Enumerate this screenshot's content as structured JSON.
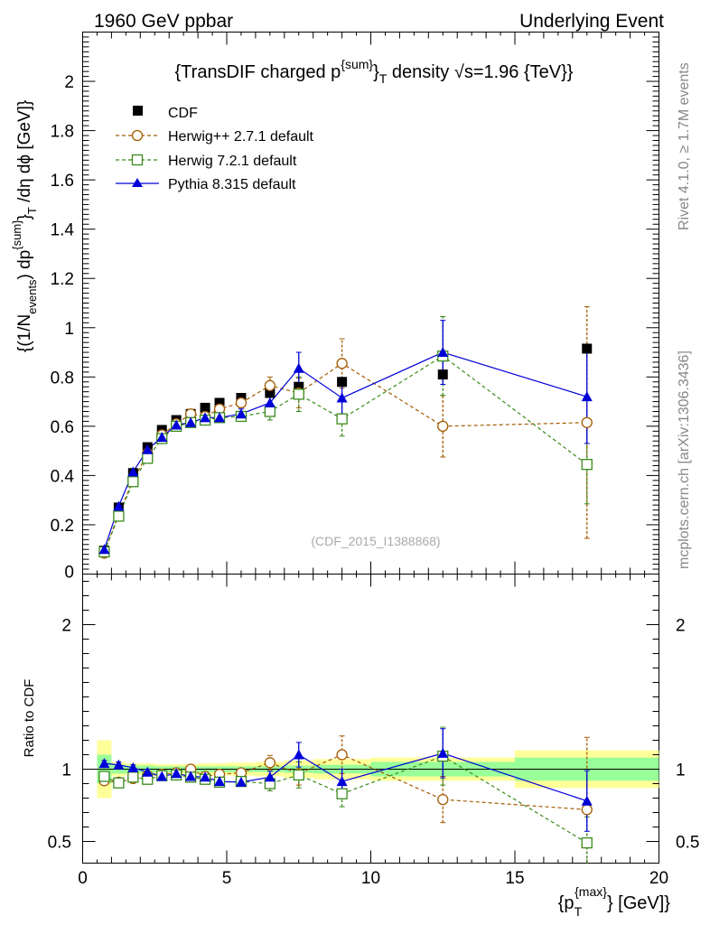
{
  "header": {
    "left": "1960 GeV ppbar",
    "right": "Underlying Event"
  },
  "side": {
    "rivet": "Rivet 4.1.0, ≥ 1.7M events",
    "mcplots": "mcplots.cern.ch [arXiv:1306.3436]"
  },
  "watermark": "(CDF_2015_I1388868)",
  "chart_data": {
    "type": "line",
    "title": {
      "pre": "{TransDIF charged p",
      "sup": "{sum}",
      "mid": "}",
      "sub": "T",
      "post": " density √s=1.96 {TeV}}"
    },
    "xlabel": {
      "pre": "{p",
      "sub": "T",
      "sup": "{max}",
      "post": "} [GeV]}"
    },
    "ylabel_main": {
      "p1": "{(1/N",
      "s1": "events",
      "p2": ") dp",
      "s2": "{sum}",
      "p3": "}",
      "s3": "T",
      "p4": " /dη  dϕ [GeV]}"
    },
    "ylabel_ratio": "Ratio to CDF",
    "xlim": [
      0,
      20
    ],
    "ylim_main": [
      0,
      2.2
    ],
    "ylim_ratio": [
      0.35,
      2.35
    ],
    "x_ticks": [
      "0",
      "5",
      "10",
      "15",
      "20"
    ],
    "y_ticks_main": [
      "0.2",
      "0.4",
      "0.6",
      "0.8",
      "1",
      "1.2",
      "1.4",
      "1.6",
      "1.8",
      "2"
    ],
    "y_ticks_ratio": [
      "0.5",
      "1",
      "2"
    ],
    "y_tick_zero_main": "0",
    "legend": [
      "CDF",
      "Herwig++ 2.7.1 default",
      "Herwig 7.2.1 default",
      "Pythia 8.315 default"
    ],
    "x": [
      0.75,
      1.25,
      1.75,
      2.25,
      2.75,
      3.25,
      3.75,
      4.25,
      4.75,
      5.5,
      6.5,
      7.5,
      9.0,
      12.5,
      17.5
    ],
    "bins": [
      [
        0.5,
        1.0
      ],
      [
        1.0,
        1.5
      ],
      [
        1.5,
        2.0
      ],
      [
        2.0,
        2.5
      ],
      [
        2.5,
        3.0
      ],
      [
        3.0,
        3.5
      ],
      [
        3.5,
        4.0
      ],
      [
        4.0,
        4.5
      ],
      [
        4.5,
        5.0
      ],
      [
        5.0,
        6.0
      ],
      [
        6.0,
        7.0
      ],
      [
        7.0,
        8.0
      ],
      [
        8.0,
        10.0
      ],
      [
        10.0,
        15.0
      ],
      [
        15.0,
        20.0
      ]
    ],
    "series": [
      {
        "name": "CDF",
        "color": "#000000",
        "marker": "square-filled",
        "values": [
          0.095,
          0.27,
          0.41,
          0.515,
          0.585,
          0.625,
          0.65,
          0.675,
          0.695,
          0.715,
          0.735,
          0.76,
          0.78,
          0.81,
          0.915
        ],
        "band_stat": [
          0.1,
          0.03,
          0.025,
          0.025,
          0.02,
          0.02,
          0.02,
          0.02,
          0.02,
          0.02,
          0.02,
          0.025,
          0.03,
          0.05,
          0.08
        ],
        "band_tot": [
          0.2,
          0.05,
          0.04,
          0.04,
          0.035,
          0.035,
          0.035,
          0.04,
          0.04,
          0.045,
          0.05,
          0.06,
          0.07,
          0.08,
          0.13
        ]
      },
      {
        "name": "Herwig++ 2.7.1 default",
        "color": "#a35a00",
        "marker": "circle-open",
        "dashed": true,
        "values": [
          0.085,
          0.245,
          0.38,
          0.49,
          0.565,
          0.61,
          0.65,
          0.64,
          0.67,
          0.695,
          0.765,
          0.735,
          0.855,
          0.6,
          0.615
        ],
        "errors": [
          0.005,
          0.008,
          0.01,
          0.01,
          0.012,
          0.012,
          0.012,
          0.015,
          0.015,
          0.02,
          0.035,
          0.06,
          0.1,
          0.125,
          0.47
        ],
        "ratio": [
          0.92,
          0.91,
          0.935,
          0.955,
          0.965,
          0.975,
          1.0,
          0.95,
          0.965,
          0.975,
          1.045,
          0.97,
          1.1,
          0.79,
          0.72
        ],
        "ratio_err": [
          0.02,
          0.02,
          0.02,
          0.02,
          0.02,
          0.02,
          0.02,
          0.02,
          0.02,
          0.025,
          0.05,
          0.08,
          0.13,
          0.16,
          0.5
        ]
      },
      {
        "name": "Herwig 7.2.1 default",
        "color": "#3a8a1c",
        "marker": "square-open",
        "dashed": true,
        "values": [
          0.09,
          0.235,
          0.375,
          0.47,
          0.55,
          0.6,
          0.615,
          0.625,
          0.635,
          0.64,
          0.66,
          0.73,
          0.63,
          0.885,
          0.445
        ],
        "errors": [
          0.005,
          0.008,
          0.01,
          0.01,
          0.012,
          0.012,
          0.012,
          0.015,
          0.015,
          0.02,
          0.035,
          0.07,
          0.07,
          0.16,
          0.16
        ],
        "ratio": [
          0.95,
          0.905,
          0.945,
          0.93,
          0.955,
          0.96,
          0.945,
          0.93,
          0.91,
          0.915,
          0.9,
          0.96,
          0.83,
          1.09,
          0.49
        ],
        "ratio_err": [
          0.02,
          0.02,
          0.02,
          0.02,
          0.02,
          0.02,
          0.02,
          0.02,
          0.02,
          0.025,
          0.05,
          0.09,
          0.09,
          0.2,
          0.18
        ]
      },
      {
        "name": "Pythia 8.315 default",
        "color": "#0000d8",
        "marker": "triangle-filled",
        "dashed": false,
        "values": [
          0.1,
          0.275,
          0.415,
          0.505,
          0.555,
          0.605,
          0.615,
          0.635,
          0.635,
          0.65,
          0.695,
          0.835,
          0.715,
          0.9,
          0.72
        ],
        "errors": [
          0.005,
          0.008,
          0.01,
          0.01,
          0.012,
          0.012,
          0.012,
          0.015,
          0.015,
          0.02,
          0.03,
          0.065,
          0.065,
          0.13,
          0.19
        ],
        "ratio": [
          1.04,
          1.03,
          1.01,
          0.98,
          0.95,
          0.97,
          0.95,
          0.945,
          0.915,
          0.91,
          0.945,
          1.1,
          0.915,
          1.11,
          0.78
        ],
        "ratio_err": [
          0.02,
          0.02,
          0.02,
          0.02,
          0.02,
          0.02,
          0.02,
          0.02,
          0.02,
          0.025,
          0.04,
          0.085,
          0.085,
          0.17,
          0.21
        ]
      }
    ]
  }
}
